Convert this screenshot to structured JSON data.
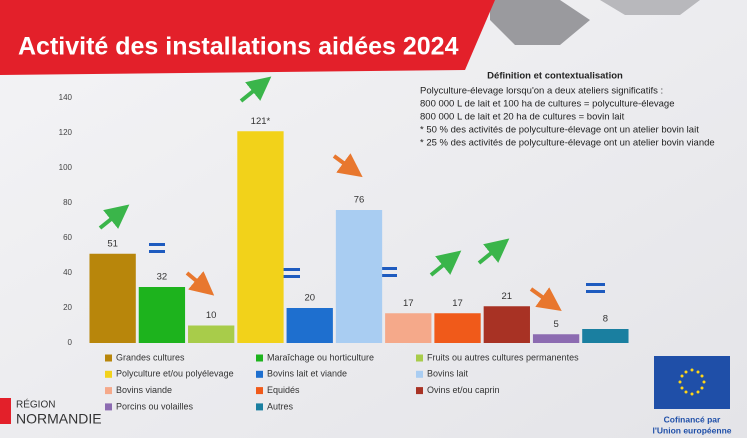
{
  "chart_data": {
    "type": "bar",
    "title": "Activité des installations aidées 2024",
    "categories": [
      "Grandes cultures",
      "Maraîchage ou horticulture",
      "Fruits ou autres cultures permanentes",
      "Polyculture et/ou polyélevage",
      "Bovins lait et viande",
      "Bovins lait",
      "Bovins viande",
      "Equidés",
      "Ovins et/ou caprin",
      "Porcins ou volailles",
      "Autres"
    ],
    "values": [
      51,
      32,
      10,
      121,
      20,
      76,
      17,
      17,
      21,
      5,
      8
    ],
    "value_labels": [
      "51",
      "32",
      "10",
      "121*",
      "20",
      "76",
      "17",
      "17",
      "21",
      "5",
      "8"
    ],
    "colors": [
      "#b8860b",
      "#1db31d",
      "#a8cc4a",
      "#f2d21a",
      "#1e6fcf",
      "#a9cdf2",
      "#f5a98a",
      "#f05a1a",
      "#a83224",
      "#8c6bb1",
      "#1a7fa0"
    ],
    "ylim": [
      0,
      140
    ],
    "yticks": [
      0,
      20,
      40,
      60,
      80,
      100,
      120,
      140
    ],
    "grid": false,
    "annotations": [
      "Définition et contextualisation",
      "Polyculture-élevage lorsqu'on a deux ateliers significatifs :",
      "800 000 L de lait et 100 ha de cultures = polyculture-élevage",
      "800 000 L de lait et 20 ha de cultures = bovin lait",
      "* 50 % des activités de polyculture-élevage ont un atelier bovin lait",
      "* 25 % des activités de polyculture-élevage ont un atelier bovin viande"
    ]
  },
  "footer": {
    "region": [
      "RÉGION",
      "NORMANDIE"
    ],
    "eu": [
      "Cofinancé par",
      "l'Union européenne"
    ]
  }
}
